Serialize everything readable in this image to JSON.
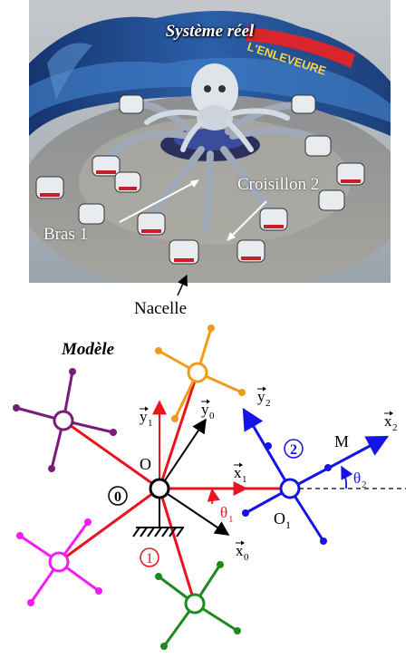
{
  "photo": {
    "title": "Système réel",
    "sign": "L'ENLEVEURE",
    "labels": {
      "bras": "Bras 1",
      "croisillon": "Croisillon 2",
      "nacelle": "Nacelle"
    }
  },
  "model": {
    "title": "Modèle",
    "ground": "0",
    "arm_number": "1",
    "cross_number": "2",
    "point_o": "O",
    "point_o1_main": "O",
    "point_o1_sub": "1",
    "point_m": "M",
    "vectors": {
      "y1_main": "y",
      "y1_sub": "1",
      "y0_main": "y",
      "y0_sub": "0",
      "y2_main": "y",
      "y2_sub": "2",
      "x1_main": "x",
      "x1_sub": "1",
      "x0_main": "x",
      "x0_sub": "0",
      "x2_main": "x",
      "x2_sub": "2"
    },
    "angles": {
      "theta1_main": "θ",
      "theta1_sub": "1",
      "theta2_main": "θ",
      "theta2_sub": "2"
    },
    "colors": {
      "arm": "#e8141e",
      "cross2": "#1414e6",
      "purple": "#7a1a7a",
      "orange": "#f29b1a",
      "magenta": "#f01ef0",
      "green": "#1e8a1e",
      "black": "#000000"
    }
  }
}
